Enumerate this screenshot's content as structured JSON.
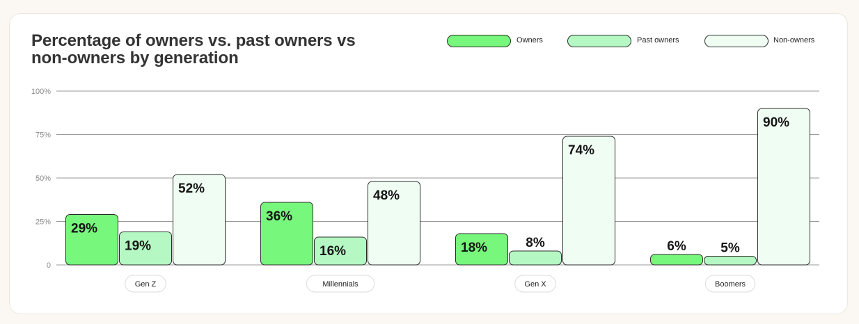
{
  "title_line1": "Percentage of owners vs. past owners vs",
  "title_line2": "non-owners by generation",
  "colors": {
    "owners": "#77f77c",
    "past_owners": "#b5f8c3",
    "non_owners": "#effdf2",
    "stroke": "#2b2b2b",
    "grid": "#9a9a9a"
  },
  "chart_data": {
    "type": "bar",
    "title": "Percentage of owners vs. past owners vs non-owners by generation",
    "categories": [
      "Gen Z",
      "Millennials",
      "Gen X",
      "Boomers"
    ],
    "series": [
      {
        "name": "Owners",
        "values": [
          29,
          36,
          18,
          6
        ],
        "labels": [
          "29%",
          "36%",
          "18%",
          "6%"
        ]
      },
      {
        "name": "Past owners",
        "values": [
          19,
          16,
          8,
          5
        ],
        "labels": [
          "19%",
          "16%",
          "8%",
          "5%"
        ]
      },
      {
        "name": "Non-owners",
        "values": [
          52,
          48,
          74,
          90
        ],
        "labels": [
          "52%",
          "48%",
          "74%",
          "90%"
        ]
      }
    ],
    "ylim": [
      0,
      100
    ],
    "yticks": [
      0,
      25,
      50,
      75,
      100
    ],
    "ytick_labels": [
      "0",
      "25%",
      "50%",
      "75%",
      "100%"
    ],
    "grid": true,
    "legend_position": "top-right"
  }
}
